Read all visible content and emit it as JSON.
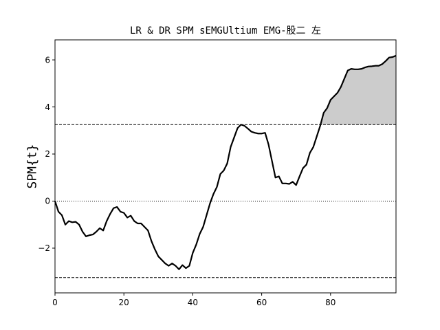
{
  "chart_data": {
    "type": "line",
    "title": "LR & DR SPM sEMGUltium EMG-股二 左",
    "xlabel": "",
    "ylabel": "SPM{t}",
    "xlim": [
      0,
      99
    ],
    "ylim": [
      -3.9,
      6.85
    ],
    "xticks": [
      0,
      20,
      40,
      60,
      80
    ],
    "yticks": [
      -2,
      0,
      2,
      4,
      6
    ],
    "threshold_upper": 3.25,
    "threshold_lower": -3.25,
    "zero_line": 0,
    "shade_above_threshold": true,
    "shade_color": "#cccccc",
    "line_color": "#000000",
    "grid": false,
    "series": [
      {
        "x": [
          0,
          1,
          2,
          3,
          4,
          5,
          6,
          7,
          8,
          9,
          10,
          11,
          12,
          13,
          14,
          15,
          16,
          17,
          18,
          19,
          20,
          21,
          22,
          23,
          24,
          25,
          26,
          27,
          28,
          29,
          30,
          31,
          32,
          33,
          34,
          35,
          36,
          37,
          38,
          39,
          40,
          41,
          42,
          43,
          44,
          45,
          46,
          47,
          48,
          49,
          50,
          51,
          52,
          53,
          54,
          55,
          56,
          57,
          58,
          59,
          60,
          61,
          62,
          63,
          64,
          65,
          66,
          67,
          68,
          69,
          70,
          71,
          72,
          73,
          74,
          75,
          76,
          77,
          78,
          79,
          80,
          81,
          82,
          83,
          84,
          85,
          86,
          87,
          88,
          89,
          90,
          91,
          92,
          93,
          94,
          95,
          96,
          97,
          98,
          99
        ],
        "y": [
          0.0,
          -0.45,
          -0.6,
          -1.0,
          -0.85,
          -0.9,
          -0.88,
          -1.0,
          -1.3,
          -1.5,
          -1.45,
          -1.42,
          -1.3,
          -1.15,
          -1.25,
          -0.85,
          -0.55,
          -0.3,
          -0.25,
          -0.45,
          -0.5,
          -0.7,
          -0.62,
          -0.85,
          -0.95,
          -0.95,
          -1.1,
          -1.25,
          -1.7,
          -2.05,
          -2.35,
          -2.5,
          -2.65,
          -2.75,
          -2.65,
          -2.75,
          -2.9,
          -2.72,
          -2.85,
          -2.75,
          -2.2,
          -1.85,
          -1.4,
          -1.1,
          -0.6,
          -0.1,
          0.3,
          0.6,
          1.15,
          1.3,
          1.6,
          2.3,
          2.7,
          3.1,
          3.25,
          3.2,
          3.08,
          2.95,
          2.9,
          2.87,
          2.87,
          2.9,
          2.4,
          1.7,
          1.0,
          1.05,
          0.75,
          0.75,
          0.73,
          0.82,
          0.68,
          1.05,
          1.4,
          1.55,
          2.05,
          2.3,
          2.75,
          3.2,
          3.75,
          3.95,
          4.3,
          4.45,
          4.6,
          4.85,
          5.2,
          5.55,
          5.62,
          5.6,
          5.6,
          5.62,
          5.68,
          5.72,
          5.73,
          5.75,
          5.75,
          5.82,
          5.95,
          6.1,
          6.12,
          6.18
        ]
      }
    ]
  }
}
